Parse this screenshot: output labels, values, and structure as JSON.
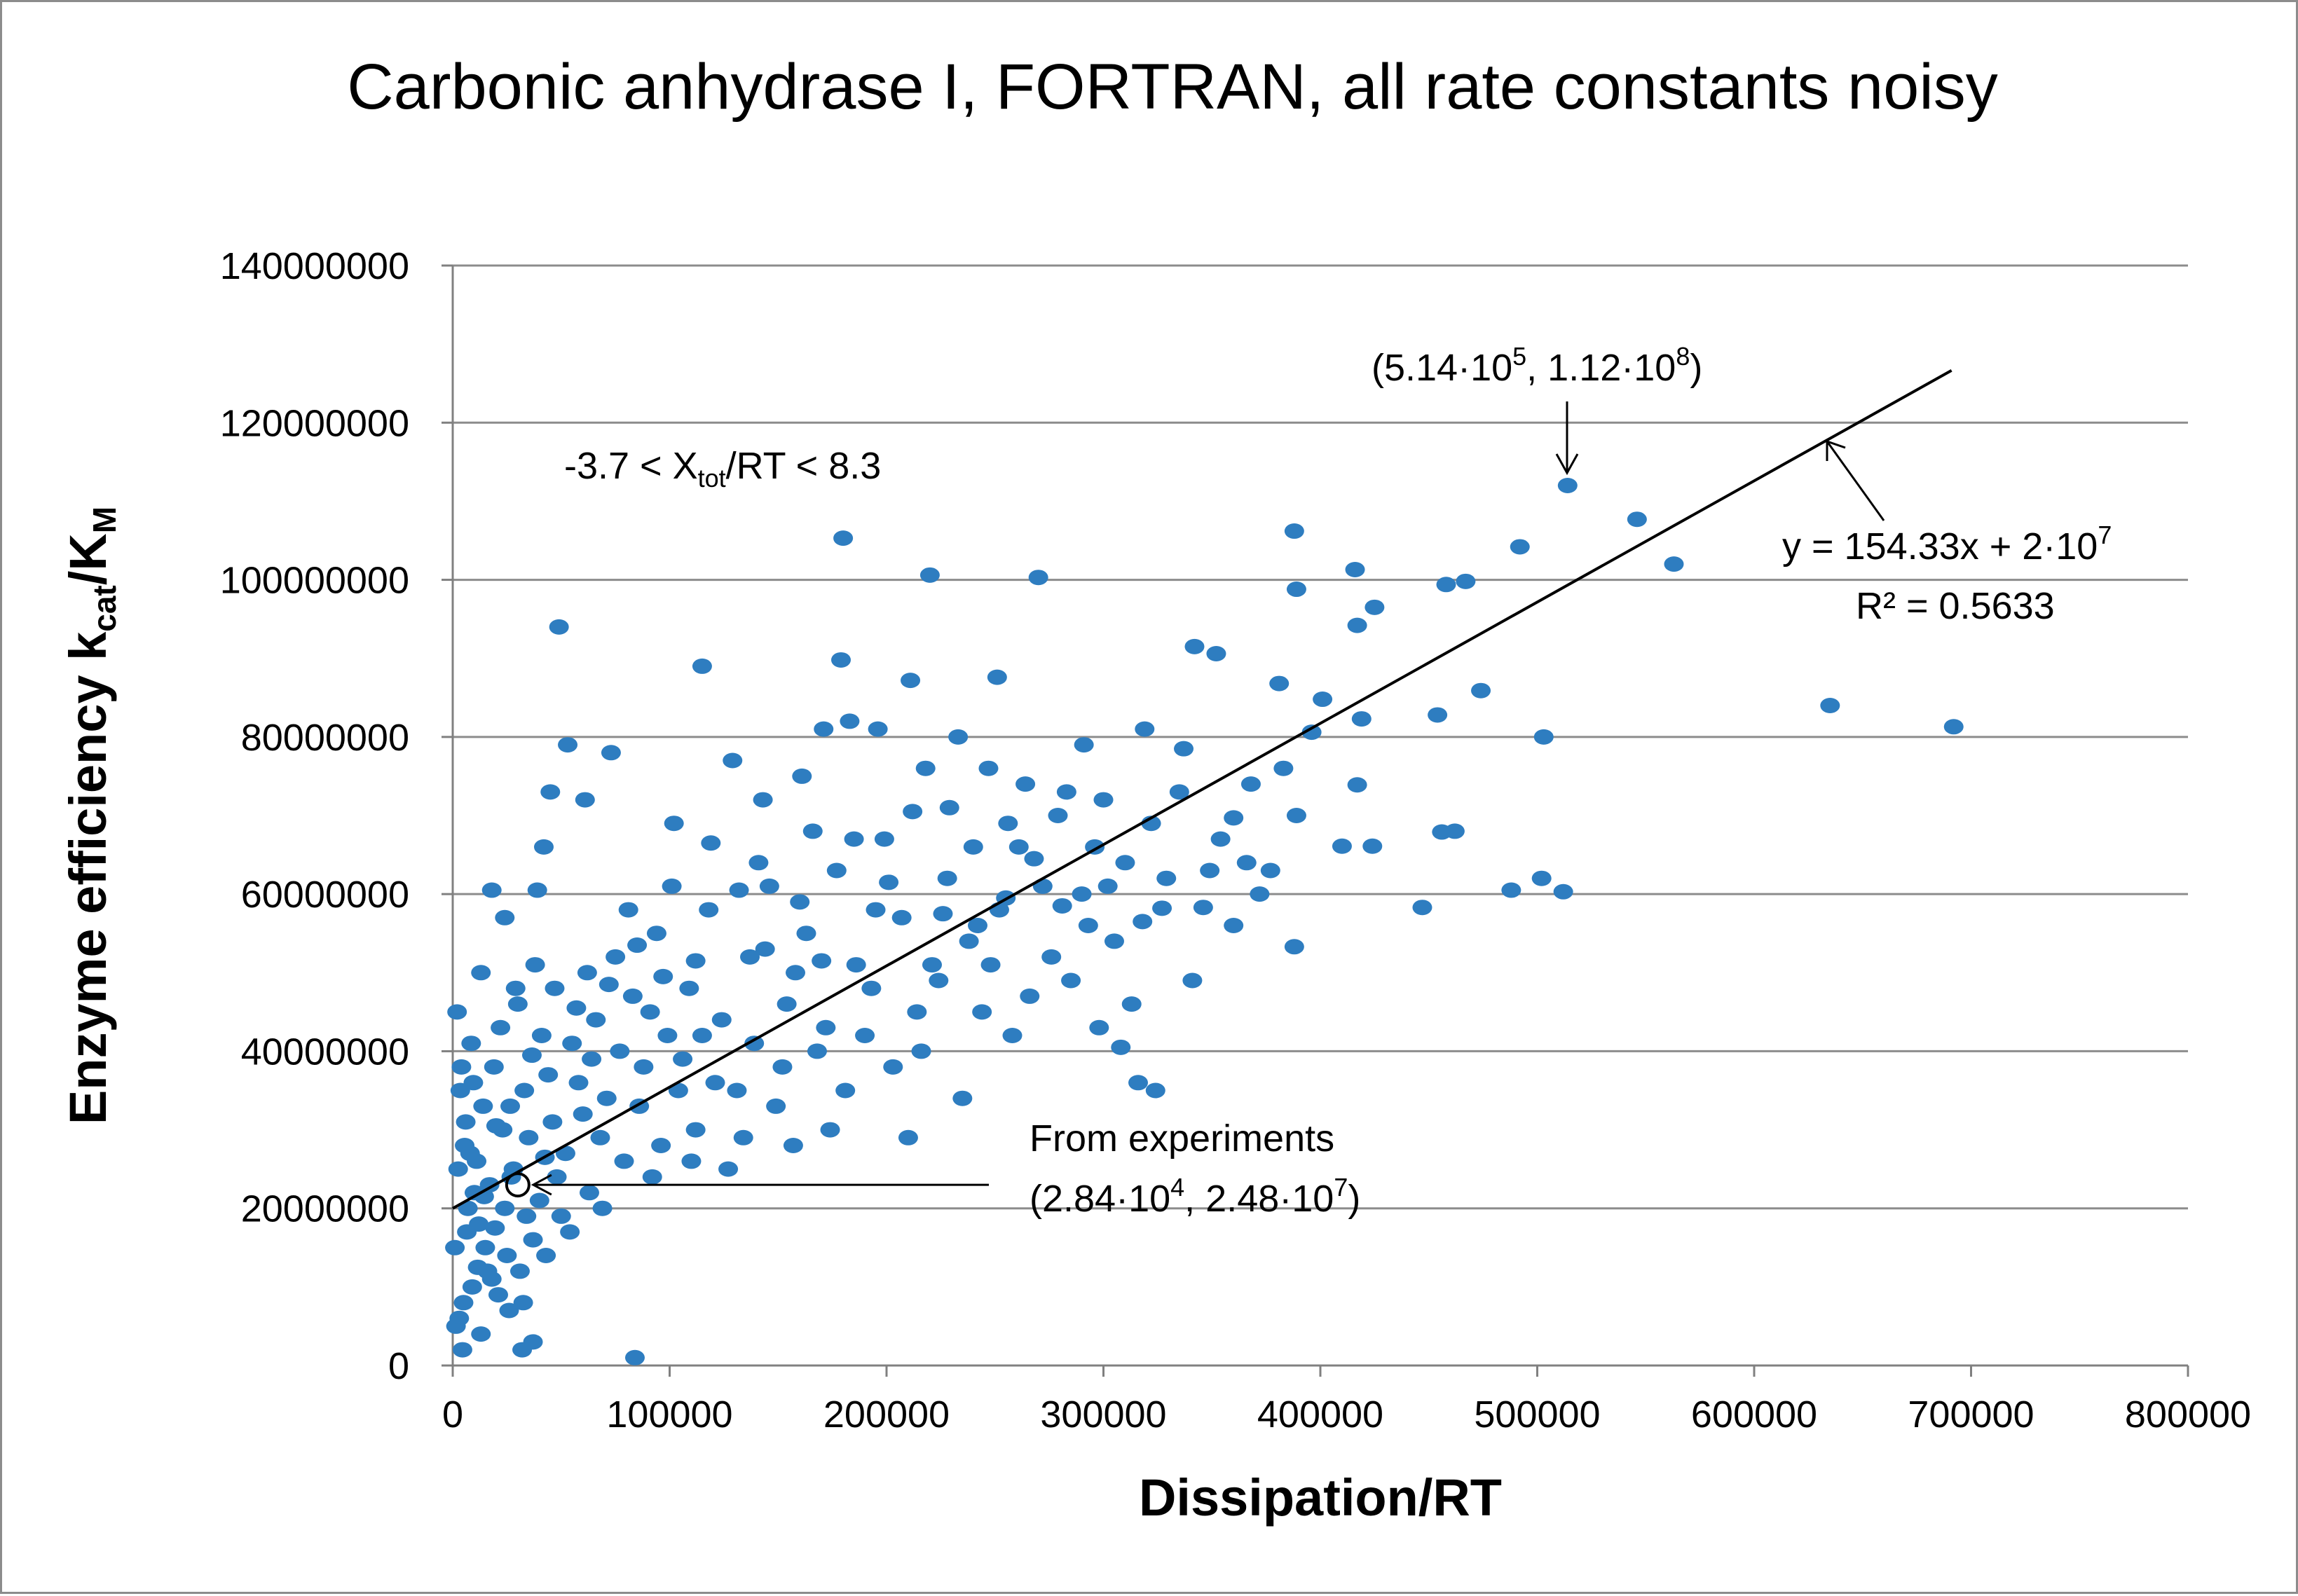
{
  "chart_data": {
    "type": "scatter",
    "title": "Carbonic anhydrase I, FORTRAN, all rate constants noisy",
    "xlabel": "Dissipation/RT",
    "ylabel": {
      "prefix": "Enzyme  efficiency  k",
      "sub1": "cat",
      "mid": "/K",
      "sub2": "M"
    },
    "xlim": [
      0,
      800000
    ],
    "ylim": [
      0,
      140000000
    ],
    "x_ticks": [
      "0",
      "100000",
      "200000",
      "300000",
      "400000",
      "500000",
      "600000",
      "700000",
      "800000"
    ],
    "y_ticks": [
      "0",
      "20000000",
      "40000000",
      "60000000",
      "80000000",
      "100000000",
      "120000000",
      "140000000"
    ],
    "grid": "horizontal",
    "series": [
      {
        "color": "#2E7DC0",
        "points": [
          [
            635000,
            84000000
          ],
          [
            692000,
            81300000
          ],
          [
            563000,
            102000000
          ],
          [
            546000,
            107700000
          ],
          [
            514000,
            112000000
          ],
          [
            492000,
            104200000
          ],
          [
            503000,
            80000000
          ],
          [
            502000,
            62000000
          ],
          [
            512000,
            60300000
          ],
          [
            488000,
            60500000
          ],
          [
            474000,
            85900000
          ],
          [
            467000,
            99800000
          ],
          [
            458000,
            99400000
          ],
          [
            454000,
            82800000
          ],
          [
            462000,
            68000000
          ],
          [
            456000,
            67900000
          ],
          [
            447000,
            58300000
          ],
          [
            425000,
            96500000
          ],
          [
            416000,
            101300000
          ],
          [
            417000,
            94200000
          ],
          [
            419000,
            82300000
          ],
          [
            417000,
            73900000
          ],
          [
            410000,
            66100000
          ],
          [
            424000,
            66100000
          ],
          [
            388000,
            106200000
          ],
          [
            389000,
            98800000
          ],
          [
            401000,
            84800000
          ],
          [
            396000,
            80600000
          ],
          [
            381000,
            86800000
          ],
          [
            383000,
            76000000
          ],
          [
            389000,
            70000000
          ],
          [
            388000,
            53300000
          ],
          [
            360000,
            69700000
          ],
          [
            366000,
            64000000
          ],
          [
            346000,
            58300000
          ],
          [
            342000,
            91500000
          ],
          [
            352000,
            90600000
          ],
          [
            327000,
            58200000
          ],
          [
            324000,
            35000000
          ],
          [
            316000,
            36000000
          ],
          [
            308000,
            40500000
          ],
          [
            270000,
            100300000
          ],
          [
            220000,
            100600000
          ],
          [
            251000,
            87600000
          ],
          [
            211000,
            87200000
          ],
          [
            179000,
            89800000
          ],
          [
            180000,
            105300000
          ],
          [
            115000,
            89000000
          ],
          [
            49000,
            94000000
          ],
          [
            84000,
            1000000
          ],
          [
            37000,
            3000000
          ],
          [
            32000,
            2000000
          ],
          [
            53000,
            79000000
          ],
          [
            45000,
            73000000
          ],
          [
            39000,
            60500000
          ],
          [
            29000,
            48000000
          ],
          [
            61000,
            72000000
          ],
          [
            73000,
            78000000
          ],
          [
            102000,
            69000000
          ],
          [
            129000,
            77000000
          ],
          [
            143000,
            72000000
          ],
          [
            161000,
            75000000
          ],
          [
            171000,
            81000000
          ],
          [
            183000,
            82000000
          ],
          [
            196000,
            81000000
          ],
          [
            218000,
            76000000
          ],
          [
            233000,
            80000000
          ],
          [
            247000,
            76000000
          ],
          [
            283000,
            73000000
          ],
          [
            291000,
            79000000
          ],
          [
            300000,
            72000000
          ],
          [
            319000,
            81000000
          ],
          [
            337000,
            78500000
          ],
          [
            360000,
            56000000
          ],
          [
            290000,
            60000000
          ],
          [
            261000,
            66000000
          ],
          [
            310000,
            64000000
          ],
          [
            276000,
            52000000
          ],
          [
            252000,
            58000000
          ],
          [
            244000,
            45000000
          ],
          [
            221000,
            51000000
          ],
          [
            193000,
            48000000
          ],
          [
            172000,
            43000000
          ],
          [
            152000,
            38000000
          ],
          [
            131000,
            35000000
          ],
          [
            112000,
            30000000
          ],
          [
            96000,
            28000000
          ],
          [
            79000,
            26000000
          ],
          [
            63000,
            22000000
          ],
          [
            50000,
            19000000
          ],
          [
            37000,
            16000000
          ],
          [
            25000,
            14000000
          ],
          [
            16000,
            12000000
          ],
          [
            9000,
            10000000
          ],
          [
            5000,
            8000000
          ],
          [
            3000,
            6000000
          ],
          [
            7000,
            20000000
          ],
          [
            11000,
            26000000
          ],
          [
            14000,
            33000000
          ],
          [
            19000,
            38000000
          ],
          [
            23000,
            30000000
          ],
          [
            27000,
            24000000
          ],
          [
            33000,
            35000000
          ],
          [
            41000,
            42000000
          ],
          [
            46000,
            31000000
          ],
          [
            52000,
            27000000
          ],
          [
            58000,
            36000000
          ],
          [
            66000,
            44000000
          ],
          [
            71000,
            34000000
          ],
          [
            75000,
            52000000
          ],
          [
            83000,
            47000000
          ],
          [
            88000,
            38000000
          ],
          [
            94000,
            55000000
          ],
          [
            99000,
            42000000
          ],
          [
            104000,
            35000000
          ],
          [
            109000,
            48000000
          ],
          [
            118000,
            58000000
          ],
          [
            124000,
            44000000
          ],
          [
            137000,
            52000000
          ],
          [
            146000,
            61000000
          ],
          [
            154000,
            46000000
          ],
          [
            163000,
            55000000
          ],
          [
            177000,
            63000000
          ],
          [
            186000,
            51000000
          ],
          [
            199000,
            67000000
          ],
          [
            207000,
            57000000
          ],
          [
            214000,
            45000000
          ],
          [
            228000,
            62000000
          ],
          [
            238000,
            54000000
          ],
          [
            256000,
            69000000
          ],
          [
            266000,
            47000000
          ],
          [
            272000,
            61000000
          ],
          [
            279000,
            70000000
          ],
          [
            296000,
            66000000
          ],
          [
            305000,
            54000000
          ],
          [
            329000,
            62000000
          ],
          [
            341000,
            49000000
          ],
          [
            354000,
            67000000
          ],
          [
            372000,
            60000000
          ],
          [
            2000,
            45000000
          ],
          [
            4000,
            38000000
          ],
          [
            6000,
            31000000
          ],
          [
            8000,
            27000000
          ],
          [
            10000,
            22000000
          ],
          [
            12000,
            18000000
          ],
          [
            15000,
            15000000
          ],
          [
            18000,
            11000000
          ],
          [
            21000,
            9000000
          ],
          [
            24000,
            20000000
          ],
          [
            28000,
            25000000
          ],
          [
            31000,
            12000000
          ],
          [
            35000,
            29000000
          ],
          [
            40000,
            21000000
          ],
          [
            44000,
            37000000
          ],
          [
            48000,
            24000000
          ],
          [
            55000,
            41000000
          ],
          [
            60000,
            32000000
          ],
          [
            68000,
            29000000
          ],
          [
            77000,
            40000000
          ],
          [
            86000,
            33000000
          ],
          [
            91000,
            45000000
          ],
          [
            106000,
            39000000
          ],
          [
            115000,
            42000000
          ],
          [
            121000,
            36000000
          ],
          [
            127000,
            25000000
          ],
          [
            139000,
            41000000
          ],
          [
            149000,
            33000000
          ],
          [
            158000,
            50000000
          ],
          [
            168000,
            40000000
          ],
          [
            174000,
            30000000
          ],
          [
            190000,
            42000000
          ],
          [
            203000,
            38000000
          ],
          [
            210000,
            29000000
          ],
          [
            224000,
            49000000
          ],
          [
            235000,
            34000000
          ],
          [
            242000,
            56000000
          ],
          [
            258000,
            42000000
          ],
          [
            285000,
            49000000
          ],
          [
            298000,
            43000000
          ],
          [
            313000,
            46000000
          ],
          [
            1000,
            15000000
          ],
          [
            1500,
            5000000
          ],
          [
            2500,
            25000000
          ],
          [
            3500,
            35000000
          ],
          [
            4500,
            2000000
          ],
          [
            6500,
            17000000
          ],
          [
            8500,
            41000000
          ],
          [
            13000,
            4000000
          ],
          [
            17000,
            23000000
          ],
          [
            22000,
            43000000
          ],
          [
            26000,
            7000000
          ],
          [
            30000,
            46000000
          ],
          [
            34000,
            19000000
          ],
          [
            38000,
            51000000
          ],
          [
            43000,
            14000000
          ],
          [
            47000,
            48000000
          ],
          [
            54000,
            17000000
          ],
          [
            62000,
            50000000
          ],
          [
            69000,
            20000000
          ],
          [
            81000,
            58000000
          ],
          [
            92000,
            24000000
          ],
          [
            101000,
            61000000
          ],
          [
            110000,
            26000000
          ],
          [
            134000,
            29000000
          ],
          [
            141000,
            64000000
          ],
          [
            157000,
            28000000
          ],
          [
            166000,
            68000000
          ],
          [
            181000,
            35000000
          ],
          [
            195000,
            58000000
          ],
          [
            216000,
            40000000
          ],
          [
            229000,
            71000000
          ],
          [
            248000,
            51000000
          ],
          [
            264000,
            74000000
          ],
          [
            293000,
            56000000
          ],
          [
            322000,
            69000000
          ],
          [
            335000,
            73000000
          ],
          [
            349000,
            63000000
          ],
          [
            368000,
            74000000
          ],
          [
            377000,
            63000000
          ],
          [
            18000,
            60500000
          ],
          [
            24000,
            57000000
          ],
          [
            42000,
            66000000
          ],
          [
            13000,
            50000000
          ],
          [
            9500,
            36000000
          ],
          [
            5500,
            28000000
          ],
          [
            26500,
            33000000
          ],
          [
            32500,
            8000000
          ],
          [
            20000,
            30500000
          ],
          [
            11500,
            12500000
          ],
          [
            14500,
            21500000
          ],
          [
            19500,
            17500000
          ],
          [
            36500,
            39500000
          ],
          [
            42500,
            26500000
          ],
          [
            57000,
            45500000
          ],
          [
            64000,
            39000000
          ],
          [
            72000,
            48500000
          ],
          [
            85000,
            53500000
          ],
          [
            97000,
            49500000
          ],
          [
            112000,
            51500000
          ],
          [
            119000,
            66500000
          ],
          [
            132000,
            60500000
          ],
          [
            144000,
            53000000
          ],
          [
            160000,
            59000000
          ],
          [
            170000,
            51500000
          ],
          [
            185000,
            67000000
          ],
          [
            201000,
            61500000
          ],
          [
            212000,
            70500000
          ],
          [
            226000,
            57500000
          ],
          [
            240000,
            66000000
          ],
          [
            255000,
            59500000
          ],
          [
            268000,
            64500000
          ],
          [
            281000,
            58500000
          ],
          [
            302000,
            61000000
          ],
          [
            318000,
            56500000
          ]
        ]
      }
    ],
    "trendline": {
      "x_range": [
        0,
        691000
      ],
      "slope": 154.33,
      "intercept": 20000000,
      "equation_parts": {
        "main": "y = 154.33x + 2·10",
        "sup": "7"
      },
      "r2": "R² = 0.5633"
    },
    "annotations": {
      "range_label": {
        "a": "-3.7 < X",
        "sub": "tot",
        "b": "/RT < 8.3"
      },
      "max_point": {
        "a": "(5.14·10",
        "sup1": "5",
        "b": ", 1.12·10",
        "sup2": "8",
        "c": ")",
        "x": 514000,
        "y": 112000000
      },
      "experiment_label": "From experiments",
      "experiment_point": {
        "a": "(2.84·10",
        "sup1": "4",
        "b": ", 2.48·10",
        "sup2": "7",
        "c": ")",
        "x": 30000,
        "y": 23000000
      }
    }
  }
}
